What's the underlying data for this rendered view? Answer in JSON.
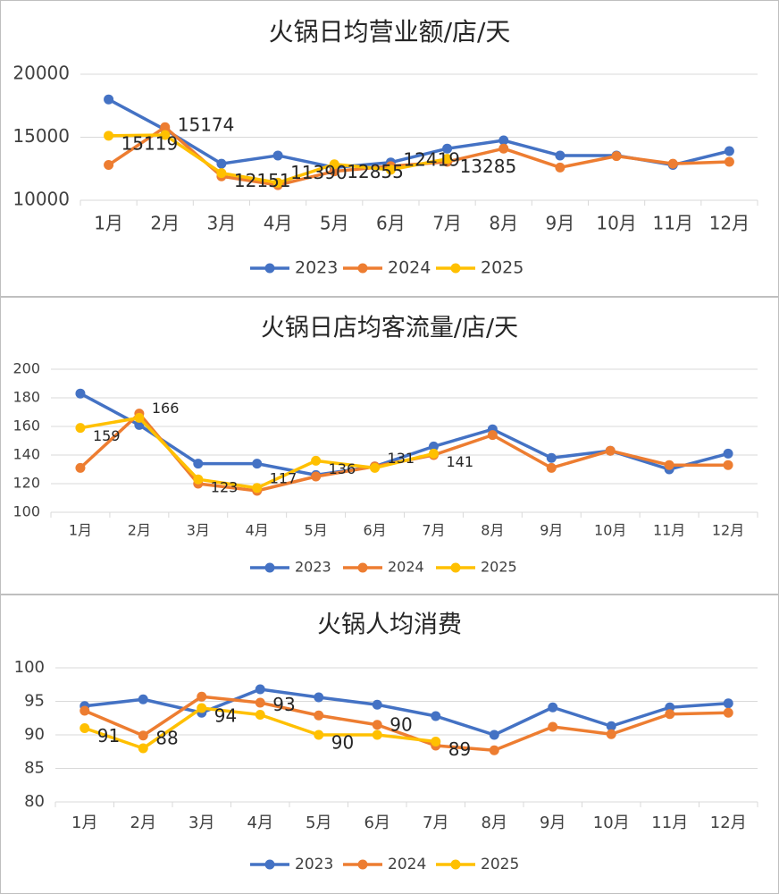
{
  "chart_data": [
    {
      "type": "line",
      "title": "火锅日均营业额/店/天",
      "categories": [
        "1月",
        "2月",
        "3月",
        "4月",
        "5月",
        "6月",
        "7月",
        "8月",
        "9月",
        "10月",
        "11月",
        "12月"
      ],
      "ylim": [
        10000,
        20000
      ],
      "yticks": [
        10000,
        15000,
        20000
      ],
      "grid": true,
      "legend": "bottom",
      "series": [
        {
          "name": "2023",
          "color": "#4472c4",
          "values": [
            18000,
            15600,
            12900,
            13550,
            12600,
            13000,
            14100,
            14750,
            13550,
            13550,
            12800,
            13900
          ]
        },
        {
          "name": "2024",
          "color": "#ed7d31",
          "values": [
            12800,
            15800,
            11900,
            11200,
            12300,
            12700,
            13050,
            14100,
            12600,
            13500,
            12900,
            13050
          ]
        },
        {
          "name": "2025",
          "color": "#ffc000",
          "values": [
            15119,
            15174,
            12151,
            11390,
            12855,
            12419,
            13285,
            null,
            null,
            null,
            null,
            null
          ],
          "data_labels": true
        }
      ]
    },
    {
      "type": "line",
      "title": "火锅日店均客流量/店/天",
      "categories": [
        "1月",
        "2月",
        "3月",
        "4月",
        "5月",
        "6月",
        "7月",
        "8月",
        "9月",
        "10月",
        "11月",
        "12月"
      ],
      "ylim": [
        100,
        200
      ],
      "yticks": [
        100,
        120,
        140,
        160,
        180,
        200
      ],
      "grid": true,
      "legend": "bottom",
      "series": [
        {
          "name": "2023",
          "color": "#4472c4",
          "values": [
            183,
            161,
            134,
            134,
            126,
            132,
            146,
            158,
            138,
            143,
            130,
            141
          ]
        },
        {
          "name": "2024",
          "color": "#ed7d31",
          "values": [
            131,
            169,
            120,
            115,
            125,
            132,
            140,
            154,
            131,
            143,
            133,
            133
          ]
        },
        {
          "name": "2025",
          "color": "#ffc000",
          "values": [
            159,
            166,
            123,
            117,
            136,
            131,
            141,
            null,
            null,
            null,
            null,
            null
          ],
          "data_labels": true
        }
      ]
    },
    {
      "type": "line",
      "title": "火锅人均消费",
      "categories": [
        "1月",
        "2月",
        "3月",
        "4月",
        "5月",
        "6月",
        "7月",
        "8月",
        "9月",
        "10月",
        "11月",
        "12月"
      ],
      "ylim": [
        80,
        100
      ],
      "yticks": [
        80,
        85,
        90,
        95,
        100
      ],
      "grid": true,
      "legend": "bottom",
      "series": [
        {
          "name": "2023",
          "color": "#4472c4",
          "values": [
            94.3,
            95.3,
            93.3,
            96.8,
            95.6,
            94.5,
            92.8,
            90,
            94.1,
            91.3,
            94.1,
            94.7
          ]
        },
        {
          "name": "2024",
          "color": "#ed7d31",
          "values": [
            93.6,
            89.9,
            95.7,
            94.8,
            92.9,
            91.5,
            88.4,
            87.7,
            91.2,
            90.1,
            93.1,
            93.3
          ]
        },
        {
          "name": "2025",
          "color": "#ffc000",
          "values": [
            91,
            88,
            94,
            93,
            90,
            90,
            89,
            null,
            null,
            null,
            null,
            null
          ],
          "data_labels": true
        }
      ]
    }
  ]
}
